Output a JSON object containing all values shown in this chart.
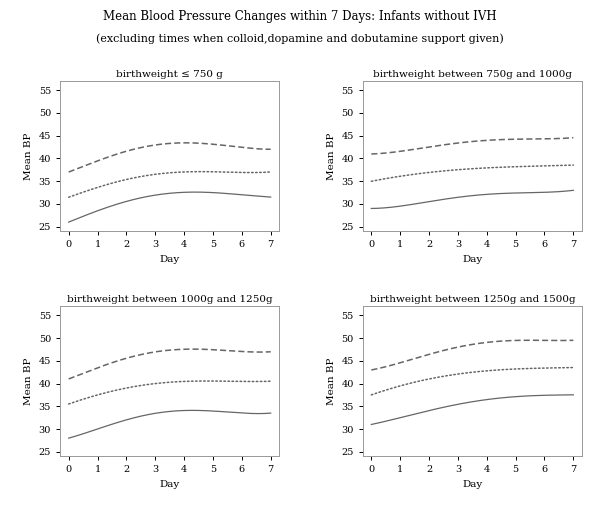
{
  "title_line1": "Mean Blood Pressure Changes within 7 Days: Infants without IVH",
  "title_line2": "(excluding times when colloid,dopamine and dobutamine support given)",
  "subplots": [
    {
      "title": "birthweight ≤ 750 g",
      "solid": [
        26.0,
        28.5,
        30.5,
        32.0,
        32.5,
        32.5,
        32.0,
        31.5
      ],
      "dotted": [
        31.5,
        33.5,
        35.5,
        36.5,
        37.0,
        37.0,
        37.0,
        37.0
      ],
      "dashed": [
        37.0,
        39.5,
        41.5,
        43.0,
        43.5,
        43.0,
        42.5,
        42.0
      ]
    },
    {
      "title": "birthweight between 750g and 1000g",
      "solid": [
        29.0,
        29.5,
        30.5,
        31.5,
        32.0,
        32.5,
        32.5,
        33.0
      ],
      "dotted": [
        35.0,
        36.0,
        37.0,
        37.5,
        38.0,
        38.0,
        38.5,
        38.5
      ],
      "dashed": [
        41.0,
        41.5,
        42.5,
        43.5,
        44.0,
        44.0,
        44.5,
        44.5
      ]
    },
    {
      "title": "birthweight between 1000g and 1250g",
      "solid": [
        28.0,
        30.0,
        32.0,
        33.5,
        34.0,
        34.0,
        33.5,
        33.5
      ],
      "dotted": [
        35.5,
        37.5,
        39.0,
        40.0,
        40.5,
        40.5,
        40.5,
        40.5
      ],
      "dashed": [
        41.0,
        43.5,
        45.5,
        47.0,
        47.5,
        47.5,
        47.0,
        47.0
      ]
    },
    {
      "title": "birthweight between 1250g and 1500g",
      "solid": [
        31.0,
        32.5,
        34.0,
        35.5,
        36.5,
        37.0,
        37.5,
        37.5
      ],
      "dotted": [
        37.5,
        39.5,
        41.0,
        42.0,
        43.0,
        43.0,
        43.5,
        43.5
      ],
      "dashed": [
        43.0,
        44.5,
        46.5,
        48.0,
        49.0,
        49.5,
        49.5,
        49.5
      ]
    }
  ],
  "x": [
    0,
    1,
    2,
    3,
    4,
    5,
    6,
    7
  ],
  "xlim": [
    -0.3,
    7.3
  ],
  "ylim": [
    24,
    57
  ],
  "yticks": [
    25,
    30,
    35,
    40,
    45,
    50,
    55
  ],
  "xticks": [
    0,
    1,
    2,
    3,
    4,
    5,
    6,
    7
  ],
  "xlabel": "Day",
  "ylabel": "Mean BP",
  "line_color": "#666666",
  "bg_color": "#ffffff",
  "fig_bg": "#ffffff",
  "title_fontsize": 8.5,
  "subtitle_fontsize": 8.0,
  "subplot_title_fontsize": 7.5,
  "tick_fontsize": 7.0,
  "axis_label_fontsize": 7.5
}
